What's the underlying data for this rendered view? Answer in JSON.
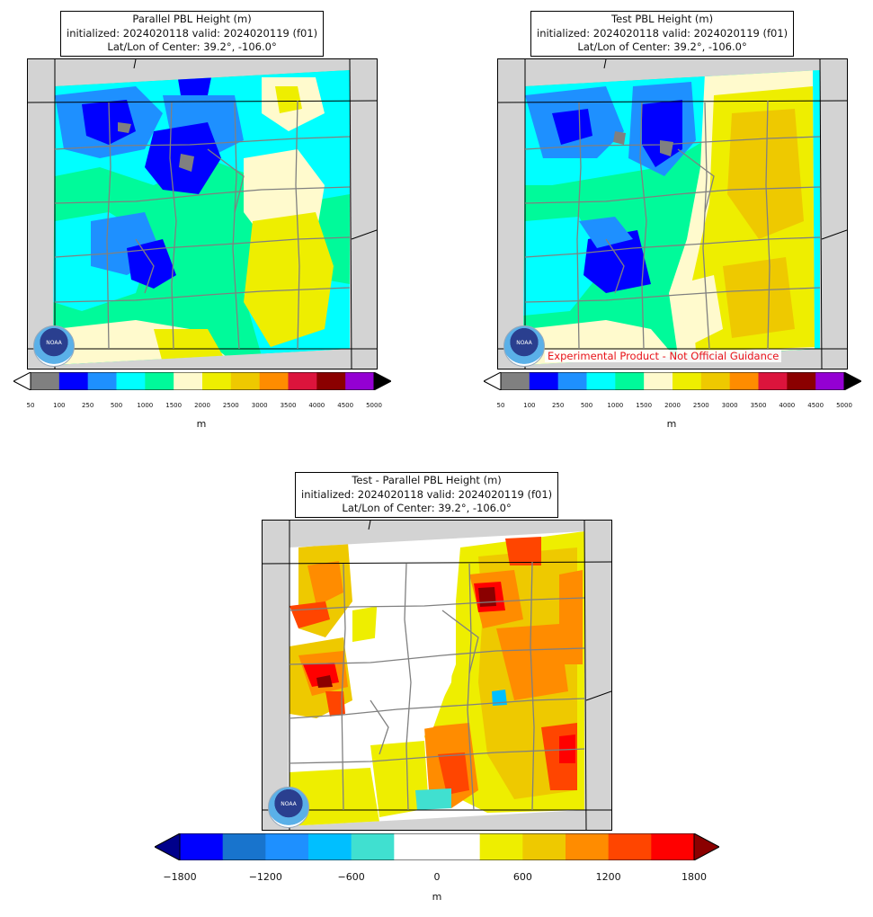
{
  "panels": {
    "parallel": {
      "title_line1": "Parallel PBL Height (m)",
      "title_line2": "initialized: 2024020118 valid: 2024020119 (f01)",
      "title_line3": "Lat/Lon of Center: 39.2°, -106.0°"
    },
    "test": {
      "title_line1": "Test PBL Height (m)",
      "title_line2": "initialized: 2024020118 valid: 2024020119 (f01)",
      "title_line3": "Lat/Lon of Center: 39.2°, -106.0°",
      "watermark": "Experimental Product - Not Official Guidance"
    },
    "diff": {
      "title_line1": "Test - Parallel PBL Height (m)",
      "title_line2": "initialized: 2024020118 valid: 2024020119 (f01)",
      "title_line3": "Lat/Lon of Center: 39.2°, -106.0°"
    }
  },
  "colorbar_pbl": {
    "unit": "m",
    "ticks": [
      "50",
      "100",
      "250",
      "500",
      "1000",
      "1500",
      "2000",
      "2500",
      "3000",
      "3500",
      "4000",
      "4500",
      "5000"
    ],
    "colors": [
      "#808080",
      "#0000ff",
      "#1e90ff",
      "#00ffff",
      "#00fa9a",
      "#fffacd",
      "#eeee00",
      "#eec900",
      "#ff8c00",
      "#dc143c",
      "#8b0000",
      "#9400d3"
    ],
    "under_color": "#ffffff",
    "over_color": "#000000"
  },
  "colorbar_diff": {
    "unit": "m",
    "ticks": [
      "−1800",
      "−1200",
      "−600",
      "0",
      "600",
      "1200",
      "1800"
    ],
    "colors": [
      "#0000ff",
      "#1874cd",
      "#1e90ff",
      "#00bfff",
      "#40e0d0",
      "#ffffff",
      "#ffffff",
      "#eeee00",
      "#eec900",
      "#ff8c00",
      "#ff4500",
      "#ff0000"
    ],
    "under_color": "#00008b",
    "over_color": "#8b0000"
  },
  "logo_text": "NOAA",
  "colors": {
    "land_gray": "#d3d3d3",
    "state_line": "#000000",
    "county_line": "#808080"
  }
}
